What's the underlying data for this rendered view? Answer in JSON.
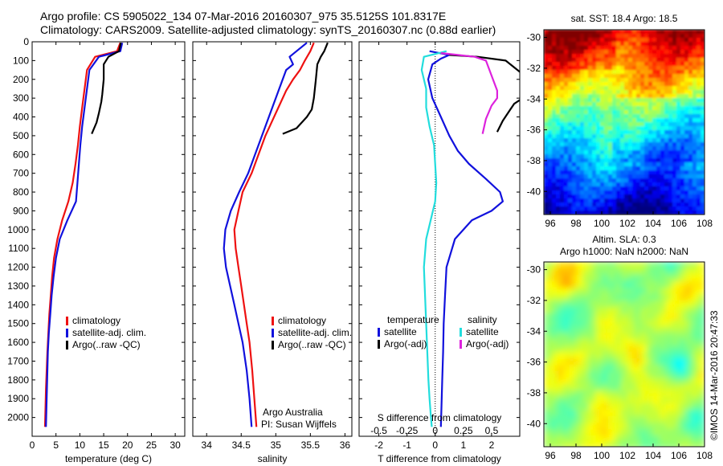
{
  "header": {
    "line1": "Argo profile: CS 5905022_134 07-Mar-2016 20160307_975 35.5125S 101.8317E",
    "line2": "Climatology: CARS2009. Satellite-adjusted climatology: synTS_20160307.nc (0.88d earlier)"
  },
  "credit": "©IMOS 14-Mar-2016 20:47:33",
  "attribution": {
    "line1": "Argo Australia",
    "line2": "PI: Susan Wijffels"
  },
  "colors": {
    "climatology": "#ee1111",
    "satellite": "#1111dd",
    "argo": "#000000",
    "salinity_sat": "#22dddd",
    "salinity_argo": "#dd22dd"
  },
  "chart_data": [
    {
      "type": "line",
      "xlabel": "temperature (deg C)",
      "ylabel": "",
      "xlim": [
        0,
        32
      ],
      "ylim": [
        2100,
        0
      ],
      "xticks": [
        "0",
        "5",
        "10",
        "15",
        "20",
        "25",
        "30"
      ],
      "yticks": [
        "0",
        "100",
        "200",
        "300",
        "400",
        "500",
        "600",
        "700",
        "800",
        "900",
        "1000",
        "1100",
        "1200",
        "1300",
        "1400",
        "1500",
        "1600",
        "1700",
        "1800",
        "1900",
        "2000"
      ],
      "legend": [
        "climatology",
        "satellite-adj. clim.",
        "Argo(..raw -QC)"
      ],
      "legend_position": "bottom-left",
      "series": [
        {
          "name": "climatology",
          "color": "#ee1111",
          "x": [
            18.5,
            17.8,
            13.2,
            11.5,
            11,
            10.5,
            10,
            9.6,
            9.1,
            8.5,
            7.6,
            6.3,
            5.3,
            4.6,
            4.2,
            3.9,
            3.6,
            3.4,
            3.2,
            3.05,
            2.9,
            2.8,
            2.7
          ],
          "y": [
            5,
            50,
            80,
            150,
            250,
            350,
            450,
            550,
            650,
            750,
            850,
            950,
            1050,
            1150,
            1250,
            1350,
            1450,
            1550,
            1650,
            1750,
            1850,
            1950,
            2050
          ]
        },
        {
          "name": "satellite-adj. clim.",
          "color": "#1111dd",
          "x": [
            18.9,
            18.5,
            14,
            12,
            11.5,
            11,
            10.5,
            10.1,
            9.8,
            9.5,
            9.2,
            7.4,
            5.8,
            5,
            4.5,
            4.1,
            3.8,
            3.5,
            3.3,
            3.2,
            3.1,
            3,
            2.9
          ],
          "y": [
            5,
            50,
            80,
            150,
            250,
            350,
            450,
            550,
            650,
            750,
            850,
            950,
            1050,
            1150,
            1250,
            1350,
            1450,
            1550,
            1650,
            1750,
            1850,
            1950,
            2050
          ]
        },
        {
          "name": "Argo(..raw -QC)",
          "color": "#000000",
          "x": [
            18.6,
            18.2,
            16,
            15,
            15,
            14.7,
            14.5,
            14,
            13.5,
            12.5
          ],
          "y": [
            5,
            50,
            80,
            120,
            200,
            280,
            320,
            380,
            430,
            490
          ]
        }
      ]
    },
    {
      "type": "line",
      "xlabel": "salinity",
      "ylabel": "",
      "xlim": [
        33.8,
        36.1
      ],
      "ylim": [
        2100,
        0
      ],
      "xticks": [
        "34",
        "34.5",
        "35",
        "35.5",
        "36"
      ],
      "legend": [
        "climatology",
        "satellite-adj. clim.",
        "Argo(..raw -QC)"
      ],
      "legend_position": "bottom-right",
      "series": [
        {
          "name": "climatology",
          "color": "#ee1111",
          "x": [
            35.55,
            35.5,
            35.42,
            35.35,
            35.25,
            35.15,
            35.05,
            34.95,
            34.85,
            34.75,
            34.65,
            34.52,
            34.46,
            34.4,
            34.42,
            34.46,
            34.5,
            34.54,
            34.58,
            34.62,
            34.66,
            34.69,
            34.72
          ],
          "y": [
            5,
            50,
            100,
            150,
            200,
            260,
            340,
            420,
            500,
            600,
            700,
            800,
            900,
            1000,
            1100,
            1200,
            1300,
            1400,
            1500,
            1600,
            1750,
            1900,
            2050
          ]
        },
        {
          "name": "satellite-adj. clim.",
          "color": "#1111dd",
          "x": [
            35.45,
            35.3,
            35.2,
            35.25,
            35.15,
            35.1,
            35,
            34.9,
            34.8,
            34.7,
            34.6,
            34.47,
            34.35,
            34.27,
            34.25,
            34.28,
            34.34,
            34.4,
            34.46,
            34.52,
            34.58,
            34.62,
            34.65
          ],
          "y": [
            5,
            50,
            80,
            120,
            150,
            200,
            300,
            400,
            500,
            600,
            700,
            800,
            900,
            1000,
            1100,
            1200,
            1300,
            1400,
            1500,
            1600,
            1750,
            1900,
            2050
          ]
        },
        {
          "name": "Argo(..raw -QC)",
          "color": "#000000",
          "x": [
            35.75,
            35.7,
            35.65,
            35.6,
            35.58,
            35.55,
            35.52,
            35.45,
            35.3,
            35.1
          ],
          "y": [
            5,
            50,
            80,
            120,
            200,
            300,
            360,
            400,
            460,
            490
          ]
        }
      ]
    },
    {
      "type": "line",
      "xlabel": "T difference from climatology",
      "ylabel": "",
      "xlim": [
        -2.7,
        3
      ],
      "ylim": [
        2100,
        0
      ],
      "xticks": [
        "-2",
        "-1",
        "0",
        "1",
        "2"
      ],
      "top_axis_label": "S difference from climatology",
      "top_xlim": [
        -0.675,
        0.75
      ],
      "top_xticks": [
        "-0.5",
        "-0.25",
        "0",
        "0.25",
        "0.5"
      ],
      "legend_groups": [
        {
          "title": "temperature",
          "entries": [
            "satellite",
            "Argo(-adj)"
          ]
        },
        {
          "title": "salinity",
          "entries": [
            "satellite",
            "Argo(-adj)"
          ]
        }
      ],
      "legend_position": "bottom",
      "series": [
        {
          "name": "temperature satellite",
          "color": "#1111dd",
          "x": [
            -0.2,
            0.5,
            0.2,
            -0.1,
            -0.25,
            -0.1,
            0.2,
            0.5,
            0.8,
            1.2,
            1.8,
            2.3,
            2.4,
            2,
            1.3,
            0.7,
            0.4,
            0.35,
            0.3,
            0.28,
            0.25,
            0.22,
            0.2
          ],
          "y": [
            50,
            70,
            90,
            120,
            200,
            300,
            400,
            500,
            580,
            650,
            730,
            800,
            850,
            900,
            950,
            1050,
            1200,
            1350,
            1500,
            1650,
            1800,
            1950,
            2050
          ]
        },
        {
          "name": "temperature Argo(-adj)",
          "color": "#000000",
          "x": [
            0.5,
            1.5,
            2.5,
            3,
            3.5,
            3.5,
            2.8,
            2.4,
            2.2
          ],
          "y": [
            70,
            80,
            100,
            160,
            200,
            260,
            330,
            420,
            480
          ]
        },
        {
          "name": "salinity satellite",
          "color": "#22dddd",
          "x": [
            0.1,
            -0.1,
            -0.12,
            -0.08,
            -0.08,
            -0.05,
            -0.01,
            0,
            0.01,
            0,
            -0.04,
            -0.08,
            -0.1,
            -0.09,
            -0.08,
            -0.07,
            -0.06,
            -0.05,
            -0.04,
            -0.03
          ],
          "y": [
            50,
            80,
            150,
            250,
            350,
            450,
            550,
            650,
            750,
            850,
            950,
            1050,
            1200,
            1350,
            1500,
            1650,
            1800,
            1900,
            1980,
            2050
          ]
        },
        {
          "name": "salinity Argo(-adj)",
          "color": "#dd22dd",
          "x": [
            0.05,
            0.2,
            0.35,
            0.45,
            0.5,
            0.55,
            0.55,
            0.5,
            0.45,
            0.42
          ],
          "y": [
            60,
            70,
            80,
            100,
            180,
            260,
            300,
            340,
            410,
            490
          ]
        }
      ]
    },
    {
      "type": "heatmap",
      "title": "sat. SST: 18.4 Argo: 18.5",
      "xlim": [
        95.5,
        108
      ],
      "ylim": [
        -41.5,
        -29.5
      ],
      "xticks": [
        "96",
        "98",
        "100",
        "102",
        "104",
        "106",
        "108"
      ],
      "yticks": [
        "-30",
        "-32",
        "-34",
        "-36",
        "-38",
        "-40"
      ],
      "colormap_description": "jet"
    },
    {
      "type": "heatmap",
      "title": "Altim. SLA: 0.3",
      "subtitle": "Argo h1000: NaN h2000: NaN",
      "xlim": [
        95.5,
        108
      ],
      "ylim": [
        -41.5,
        -29.5
      ],
      "xticks": [
        "96",
        "98",
        "100",
        "102",
        "104",
        "106",
        "108"
      ],
      "yticks": [
        "-30",
        "-32",
        "-34",
        "-36",
        "-38",
        "-40"
      ],
      "colormap_description": "jet"
    }
  ]
}
